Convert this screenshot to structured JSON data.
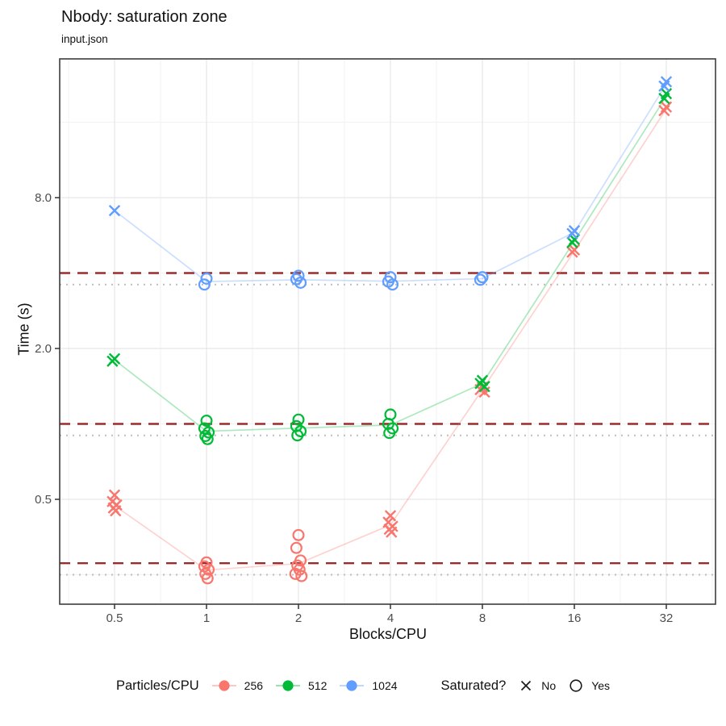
{
  "header": {
    "title": "Nbody: saturation zone",
    "subtitle": "input.json"
  },
  "chart_data": {
    "type": "scatter",
    "title": "Nbody: saturation zone",
    "subtitle": "input.json",
    "xlabel": "Blocks/CPU",
    "ylabel": "Time (s)",
    "x_scale": "log2",
    "y_scale": "log2",
    "xlim": [
      0.33,
      46
    ],
    "ylim": [
      0.195,
      28.6
    ],
    "grid": "on",
    "x_ticks": [
      {
        "v": 0.5,
        "label": "0.5"
      },
      {
        "v": 1,
        "label": "1"
      },
      {
        "v": 2,
        "label": "2"
      },
      {
        "v": 4,
        "label": "4"
      },
      {
        "v": 8,
        "label": "8"
      },
      {
        "v": 16,
        "label": "16"
      },
      {
        "v": 32,
        "label": "32"
      }
    ],
    "y_ticks": [
      {
        "v": 8,
        "label": "8.0"
      },
      {
        "v": 2,
        "label": "2.0"
      },
      {
        "v": 0.5,
        "label": "0.5"
      }
    ],
    "x_minor": [
      0.354,
      0.707,
      1.414,
      2.828,
      5.657,
      11.314,
      22.627,
      45.255
    ],
    "y_minor": [
      16,
      4,
      1,
      0.25
    ],
    "hlines": {
      "dashed": {
        "color": "#9c2c2c",
        "values": [
          4.0,
          1.0,
          0.278
        ]
      },
      "dotted": {
        "color": "#bdbdbd",
        "values": [
          3.6,
          0.9,
          0.25
        ]
      }
    },
    "shape_meaning": {
      "x": "No (not saturated)",
      "circle": "Yes (saturated)"
    },
    "series": [
      {
        "name": "256",
        "color": "#F8766D",
        "groups": [
          {
            "x": 0.5,
            "shape": "x",
            "values": [
              0.52,
              0.49,
              0.475,
              0.462,
              0.45
            ]
          },
          {
            "x": 1,
            "shape": "circle",
            "values": [
              0.28,
              0.27,
              0.262,
              0.252,
              0.242
            ]
          },
          {
            "x": 2,
            "shape": "circle",
            "values": [
              0.36,
              0.32,
              0.285,
              0.272,
              0.262,
              0.252,
              0.247
            ]
          },
          {
            "x": 4,
            "shape": "x",
            "values": [
              0.43,
              0.405,
              0.39,
              0.38,
              0.37
            ]
          },
          {
            "x": 8,
            "shape": "x",
            "values": [
              1.4,
              1.37,
              1.34
            ]
          },
          {
            "x": 16,
            "shape": "x",
            "values": [
              4.95,
              4.85
            ]
          },
          {
            "x": 32,
            "shape": "x",
            "values": [
              18.4,
              17.8
            ]
          }
        ],
        "trend": [
          [
            0.5,
            0.472
          ],
          [
            1,
            0.261
          ],
          [
            2,
            0.277
          ],
          [
            4,
            0.395
          ],
          [
            8,
            1.37
          ],
          [
            16,
            4.9
          ],
          [
            32,
            18.1
          ]
        ]
      },
      {
        "name": "512",
        "color": "#00BA38",
        "groups": [
          {
            "x": 0.5,
            "shape": "x",
            "values": [
              1.82,
              1.78
            ]
          },
          {
            "x": 1,
            "shape": "circle",
            "values": [
              1.03,
              0.96,
              0.925,
              0.895,
              0.87
            ]
          },
          {
            "x": 2,
            "shape": "circle",
            "values": [
              1.04,
              0.98,
              0.935,
              0.9
            ]
          },
          {
            "x": 4,
            "shape": "circle",
            "values": [
              1.09,
              1.0,
              0.96,
              0.92
            ]
          },
          {
            "x": 8,
            "shape": "x",
            "values": [
              1.49,
              1.45,
              1.41
            ]
          },
          {
            "x": 16,
            "shape": "x",
            "values": [
              5.45,
              5.3
            ]
          },
          {
            "x": 32,
            "shape": "x",
            "values": [
              20.8,
              19.9
            ]
          }
        ],
        "trend": [
          [
            0.5,
            1.8
          ],
          [
            1,
            0.935
          ],
          [
            2,
            0.962
          ],
          [
            4,
            0.99
          ],
          [
            8,
            1.45
          ],
          [
            16,
            5.37
          ],
          [
            32,
            20.3
          ]
        ]
      },
      {
        "name": "1024",
        "color": "#619CFF",
        "groups": [
          {
            "x": 0.5,
            "shape": "x",
            "values": [
              7.1
            ]
          },
          {
            "x": 1,
            "shape": "circle",
            "values": [
              3.8,
              3.6
            ]
          },
          {
            "x": 2,
            "shape": "circle",
            "values": [
              3.9,
              3.78,
              3.66
            ]
          },
          {
            "x": 4,
            "shape": "circle",
            "values": [
              3.85,
              3.7,
              3.6
            ]
          },
          {
            "x": 8,
            "shape": "circle",
            "values": [
              3.85,
              3.76
            ]
          },
          {
            "x": 16,
            "shape": "x",
            "values": [
              5.9,
              5.75
            ]
          },
          {
            "x": 32,
            "shape": "x",
            "values": [
              23.2,
              22.3
            ]
          }
        ],
        "trend": [
          [
            0.5,
            7.1
          ],
          [
            1,
            3.7
          ],
          [
            2,
            3.76
          ],
          [
            4,
            3.71
          ],
          [
            8,
            3.8
          ],
          [
            16,
            5.82
          ],
          [
            32,
            22.7
          ]
        ]
      }
    ],
    "legend_position": "bottom"
  },
  "legend": {
    "color_title": "Particles/CPU",
    "color_items": [
      {
        "label": "256",
        "color": "#F8766D"
      },
      {
        "label": "512",
        "color": "#00BA38"
      },
      {
        "label": "1024",
        "color": "#619CFF"
      }
    ],
    "shape_title": "Saturated?",
    "shape_items": [
      {
        "label": "No",
        "shape": "x"
      },
      {
        "label": "Yes",
        "shape": "circle"
      }
    ]
  }
}
